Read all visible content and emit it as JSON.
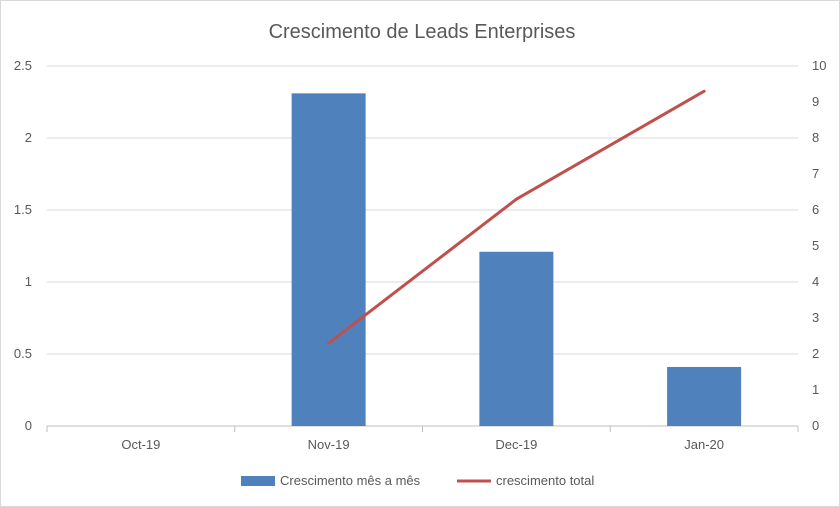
{
  "chart_data": {
    "type": "bar",
    "title": "Crescimento de Leads Enterprises",
    "categories": [
      "Oct-19",
      "Nov-19",
      "Dec-19",
      "Jan-20"
    ],
    "series": [
      {
        "name": "Crescimento mês a mês",
        "type": "bar",
        "axis": "left",
        "color": "#4f81bd",
        "values": [
          0,
          2.31,
          1.21,
          0.41
        ]
      },
      {
        "name": "crescimento total",
        "type": "line",
        "axis": "right",
        "color": "#c0504d",
        "values": [
          null,
          2.3,
          6.3,
          9.3
        ]
      }
    ],
    "y_left": {
      "min": 0,
      "max": 2.5,
      "ticks": [
        "0",
        "0.5",
        "1",
        "1.5",
        "2",
        "2.5"
      ]
    },
    "y_right": {
      "min": 0,
      "max": 10,
      "ticks": [
        "0",
        "1",
        "2",
        "3",
        "4",
        "5",
        "6",
        "7",
        "8",
        "9",
        "10"
      ]
    },
    "xlabel": "",
    "ylabel": "",
    "grid": true,
    "legend_position": "bottom"
  }
}
